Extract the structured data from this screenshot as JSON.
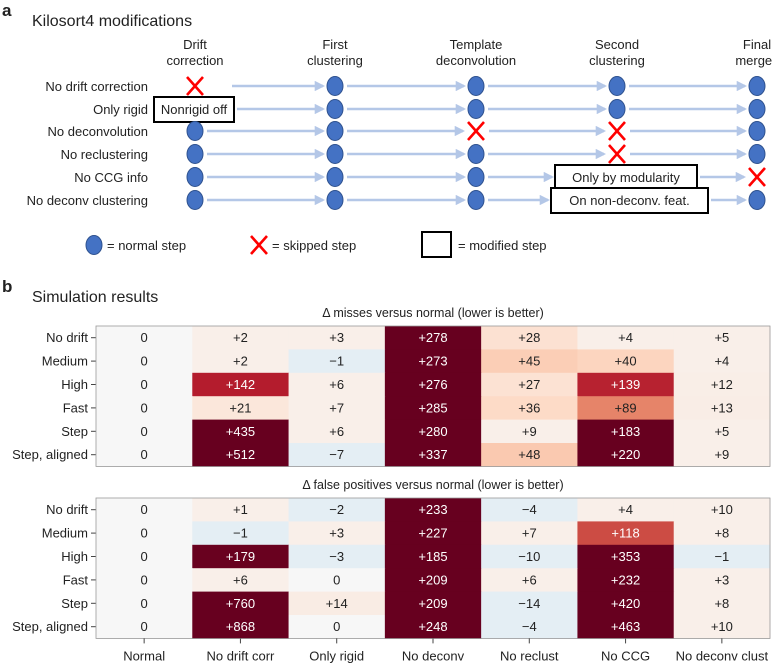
{
  "panel_a": {
    "letter": "a",
    "title": "Kilosort4 modifications",
    "columns": [
      [
        "Drift",
        "correction"
      ],
      [
        "First",
        "clustering"
      ],
      [
        "Template",
        "deconvolution"
      ],
      [
        "Second",
        "clustering"
      ],
      [
        "Final",
        "merges"
      ]
    ],
    "rows": [
      {
        "label": "No drift correction",
        "steps": [
          {
            "type": "skip"
          },
          {
            "type": "normal"
          },
          {
            "type": "normal"
          },
          {
            "type": "normal"
          },
          {
            "type": "normal"
          }
        ]
      },
      {
        "label": "Only rigid",
        "steps": [
          {
            "type": "modified",
            "text": "Nonrigid off"
          },
          {
            "type": "normal"
          },
          {
            "type": "normal"
          },
          {
            "type": "normal"
          },
          {
            "type": "normal"
          }
        ]
      },
      {
        "label": "No deconvolution",
        "steps": [
          {
            "type": "normal"
          },
          {
            "type": "normal"
          },
          {
            "type": "skip"
          },
          {
            "type": "skip"
          },
          {
            "type": "normal"
          }
        ]
      },
      {
        "label": "No reclustering",
        "steps": [
          {
            "type": "normal"
          },
          {
            "type": "normal"
          },
          {
            "type": "normal"
          },
          {
            "type": "skip"
          },
          {
            "type": "normal"
          }
        ]
      },
      {
        "label": "No CCG info",
        "steps": [
          {
            "type": "normal"
          },
          {
            "type": "normal"
          },
          {
            "type": "normal"
          },
          {
            "type": "modified",
            "text": "Only by modularity"
          },
          {
            "type": "skip"
          }
        ]
      },
      {
        "label": "No deconv clustering",
        "steps": [
          {
            "type": "normal"
          },
          {
            "type": "normal"
          },
          {
            "type": "normal"
          },
          {
            "type": "modified",
            "text": "On non-deconv. feat."
          },
          {
            "type": "normal"
          }
        ]
      }
    ],
    "legend": {
      "normal": "= normal step",
      "skip": "= skipped step",
      "modified": "= modified step"
    },
    "colors": {
      "circle": "#4472c4",
      "circle_edge": "#2f528f",
      "cross": "#ff0000",
      "arrow": "#b4c7e7"
    }
  },
  "panel_b": {
    "letter": "b",
    "title": "Simulation results"
  },
  "chart_data": [
    {
      "type": "heatmap",
      "title": "Δ misses versus normal (lower is better)",
      "rows": [
        "No drift",
        "Medium",
        "High",
        "Fast",
        "Step",
        "Step, aligned"
      ],
      "columns": [
        "Normal",
        "No drift corr",
        "Only rigid",
        "No deconv",
        "No reclust",
        "No CCG",
        "No deconv clust"
      ],
      "values": [
        [
          0,
          2,
          3,
          278,
          28,
          4,
          5
        ],
        [
          0,
          2,
          -1,
          273,
          45,
          40,
          4
        ],
        [
          0,
          142,
          6,
          276,
          27,
          139,
          12
        ],
        [
          0,
          21,
          7,
          285,
          36,
          89,
          13
        ],
        [
          0,
          435,
          6,
          280,
          9,
          183,
          5
        ],
        [
          0,
          512,
          -7,
          337,
          48,
          220,
          9
        ]
      ],
      "colormap": "RdBu_r"
    },
    {
      "type": "heatmap",
      "title": "Δ false positives versus normal (lower is better)",
      "rows": [
        "No drift",
        "Medium",
        "High",
        "Fast",
        "Step",
        "Step, aligned"
      ],
      "columns": [
        "Normal",
        "No drift corr",
        "Only rigid",
        "No deconv",
        "No reclust",
        "No CCG",
        "No deconv clust"
      ],
      "values": [
        [
          0,
          1,
          -2,
          233,
          -4,
          4,
          10
        ],
        [
          0,
          -1,
          3,
          227,
          7,
          118,
          8
        ],
        [
          0,
          179,
          -3,
          185,
          -10,
          353,
          -1
        ],
        [
          0,
          6,
          0,
          209,
          6,
          232,
          3
        ],
        [
          0,
          760,
          14,
          209,
          -14,
          420,
          8
        ],
        [
          0,
          868,
          0,
          248,
          -4,
          463,
          10
        ]
      ],
      "colormap": "RdBu_r"
    }
  ]
}
